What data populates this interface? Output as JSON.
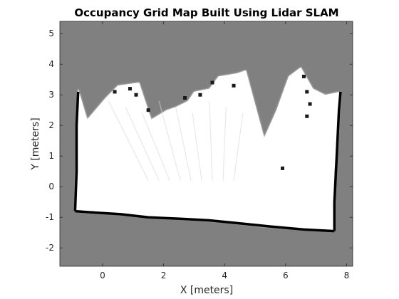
{
  "chart_data": {
    "type": "heatmap",
    "title": "Occupancy Grid Map Built Using Lidar SLAM",
    "xlabel": "X [meters]",
    "ylabel": "Y [meters]",
    "xlim": [
      -1.4,
      8.2
    ],
    "ylim": [
      -2.6,
      5.4
    ],
    "xticks": [
      0,
      2,
      4,
      6,
      8
    ],
    "yticks": [
      -2,
      -1,
      0,
      1,
      2,
      3,
      4,
      5
    ],
    "unknown_color": "#808080",
    "free_color": "#ffffff",
    "occupied_color": "#000000",
    "free_region": [
      [
        -0.9,
        -0.8
      ],
      [
        -0.8,
        3.2
      ],
      [
        -0.5,
        2.2
      ],
      [
        0.1,
        2.9
      ],
      [
        0.5,
        3.3
      ],
      [
        1.2,
        3.4
      ],
      [
        1.6,
        2.2
      ],
      [
        2.1,
        2.5
      ],
      [
        2.4,
        2.6
      ],
      [
        2.8,
        2.8
      ],
      [
        3.0,
        3.1
      ],
      [
        3.5,
        3.2
      ],
      [
        3.8,
        3.6
      ],
      [
        4.4,
        3.7
      ],
      [
        4.7,
        3.8
      ],
      [
        5.3,
        1.6
      ],
      [
        5.7,
        2.5
      ],
      [
        6.1,
        3.6
      ],
      [
        6.5,
        3.9
      ],
      [
        6.9,
        3.2
      ],
      [
        7.3,
        3.0
      ],
      [
        7.8,
        3.1
      ],
      [
        7.7,
        1.5
      ],
      [
        7.6,
        0.5
      ],
      [
        7.6,
        -1.45
      ],
      [
        5.2,
        -1.3
      ],
      [
        4.0,
        -1.15
      ],
      [
        2.6,
        -1.05
      ],
      [
        1.5,
        -1.0
      ],
      [
        0.7,
        -0.9
      ],
      [
        -0.4,
        -0.85
      ]
    ],
    "walls": [
      [
        [
          -0.9,
          -0.8
        ],
        [
          -0.85,
          0.5
        ],
        [
          -0.85,
          2.0
        ],
        [
          -0.8,
          3.1
        ]
      ],
      [
        [
          -0.9,
          -0.8
        ],
        [
          -0.2,
          -0.85
        ],
        [
          0.6,
          -0.9
        ],
        [
          1.5,
          -1.0
        ],
        [
          2.6,
          -1.05
        ],
        [
          3.5,
          -1.1
        ],
        [
          4.5,
          -1.2
        ],
        [
          5.5,
          -1.3
        ],
        [
          6.6,
          -1.4
        ],
        [
          7.6,
          -1.45
        ]
      ],
      [
        [
          7.6,
          -1.45
        ],
        [
          7.6,
          -0.5
        ],
        [
          7.65,
          0.5
        ],
        [
          7.7,
          1.5
        ],
        [
          7.75,
          2.5
        ],
        [
          7.8,
          3.1
        ]
      ]
    ],
    "obstacles": [
      [
        0.4,
        3.1
      ],
      [
        0.9,
        3.2
      ],
      [
        1.1,
        3.0
      ],
      [
        1.5,
        2.5
      ],
      [
        2.7,
        2.9
      ],
      [
        3.2,
        3.0
      ],
      [
        3.6,
        3.4
      ],
      [
        4.3,
        3.3
      ],
      [
        6.6,
        3.6
      ],
      [
        6.7,
        3.1
      ],
      [
        6.8,
        2.7
      ],
      [
        6.7,
        2.3
      ],
      [
        5.9,
        0.6
      ]
    ]
  }
}
